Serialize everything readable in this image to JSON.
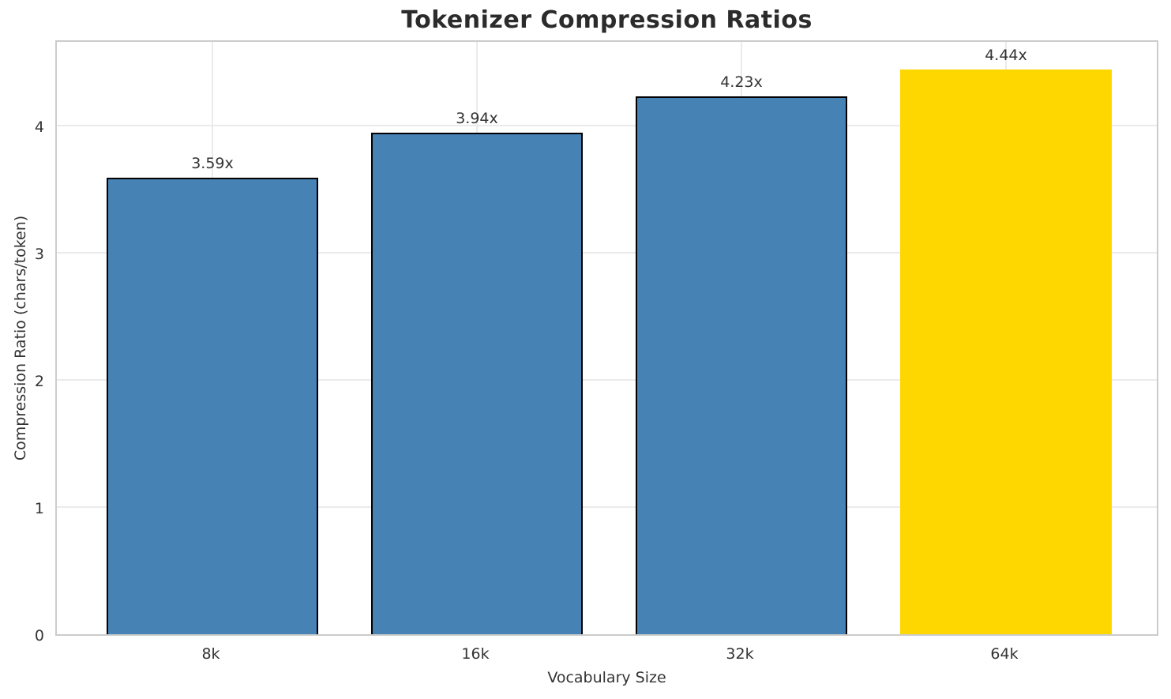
{
  "chart_data": {
    "type": "bar",
    "title": "Tokenizer Compression Ratios",
    "xlabel": "Vocabulary Size",
    "ylabel": "Compression Ratio (chars/token)",
    "categories": [
      "8k",
      "16k",
      "32k",
      "64k"
    ],
    "values": [
      3.59,
      3.94,
      4.23,
      4.44
    ],
    "bar_labels": [
      "3.59x",
      "3.94x",
      "4.23x",
      "4.44x"
    ],
    "bar_colors": [
      "#4682B4",
      "#4682B4",
      "#4682B4",
      "#FFD700"
    ],
    "bar_edged": [
      true,
      true,
      true,
      false
    ],
    "yticks": [
      "0",
      "1",
      "2",
      "3",
      "4"
    ],
    "ytick_values": [
      0,
      1,
      2,
      3,
      4
    ],
    "ylim": [
      0,
      4.68
    ],
    "grid": true,
    "legend_position": "none",
    "highlight_index": 3,
    "accent_color": "#FFD700",
    "base_color": "#4682B4",
    "grid_color": "#ebebeb",
    "spine_color": "#cccccc",
    "text_color": "#333333"
  }
}
